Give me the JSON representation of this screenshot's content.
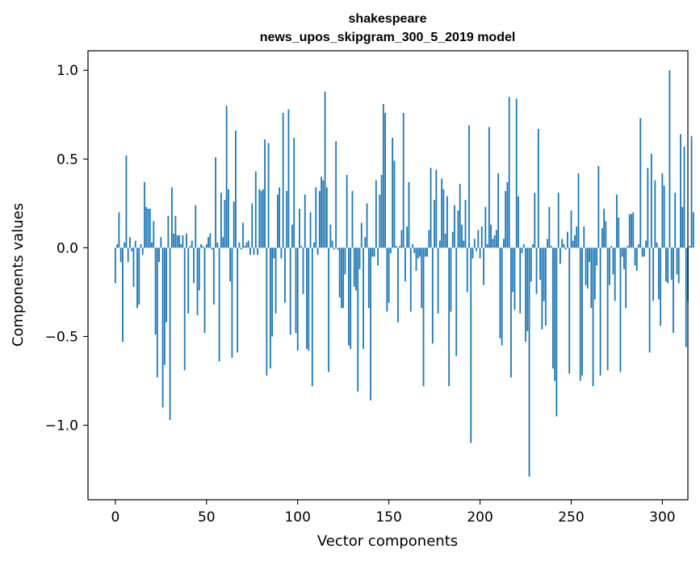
{
  "chart_data": {
    "type": "bar",
    "title": "shakespeare",
    "subtitle": "news_upos_skipgram_300_5_2019 model",
    "xlabel": "Vector components",
    "ylabel": "Components values",
    "xlim": [
      -15,
      314
    ],
    "ylim": [
      -1.42,
      1.11
    ],
    "xticks": [
      0,
      50,
      100,
      150,
      200,
      250,
      300
    ],
    "yticks": [
      -1.0,
      -0.5,
      0.0,
      0.5,
      1.0
    ],
    "ytick_labels": [
      "−1.0",
      "−0.5",
      "0.0",
      "0.5",
      "1.0"
    ],
    "bar_color": "#1f77b4",
    "values": [
      -0.2,
      0.02,
      0.2,
      -0.08,
      -0.53,
      0.03,
      0.52,
      -0.08,
      0.06,
      -0.02,
      -0.22,
      0.04,
      -0.34,
      -0.32,
      0.02,
      -0.04,
      0.37,
      0.23,
      0.22,
      0.22,
      0.03,
      0.15,
      -0.49,
      -0.73,
      -0.08,
      0.06,
      -0.9,
      -0.66,
      -0.42,
      0.18,
      -0.97,
      0.34,
      0.08,
      0.18,
      0.07,
      0.07,
      0.02,
      0.07,
      -0.69,
      0.08,
      -0.37,
      0.01,
      0.04,
      -0.2,
      0.24,
      -0.38,
      -0.24,
      0.02,
      0.01,
      -0.48,
      0.02,
      0.06,
      0.08,
      -0.01,
      -0.32,
      0.51,
      0.03,
      -0.64,
      0.31,
      0.06,
      0.27,
      0.8,
      0.33,
      -0.19,
      -0.62,
      0.26,
      0.66,
      -0.59,
      0.03,
      -0.01,
      0.14,
      0.01,
      0.03,
      0.04,
      -0.04,
      0.25,
      -0.04,
      0.43,
      -0.04,
      0.33,
      0.32,
      0.33,
      0.61,
      -0.72,
      0.59,
      -0.68,
      -0.5,
      -0.06,
      -0.37,
      0.3,
      0.34,
      -0.06,
      0.76,
      -0.31,
      0.32,
      0.78,
      -0.49,
      0.13,
      0.62,
      -0.48,
      -0.58,
      0.22,
      0.01,
      -0.26,
      0.3,
      -0.57,
      -0.58,
      0.2,
      -0.78,
      0.03,
      0.34,
      -0.04,
      0.32,
      0.4,
      0.38,
      0.88,
      0.34,
      -0.7,
      0.13,
      0.04,
      -0.01,
      0.6,
      -0.01,
      -0.28,
      -0.34,
      -0.34,
      -0.15,
      0.41,
      -0.55,
      -0.57,
      0.32,
      -0.22,
      -0.24,
      -0.81,
      -0.12,
      0.14,
      -0.57,
      0.06,
      0.25,
      -0.34,
      -0.86,
      -0.05,
      -0.05,
      0.38,
      -0.1,
      0.3,
      0.41,
      0.81,
      0.76,
      -0.36,
      -0.31,
      -0.03,
      0.62,
      0.49,
      0.01,
      -0.42,
      0.01,
      0.1,
      0.76,
      -0.19,
      0.12,
      0.37,
      -0.36,
      0.02,
      -0.03,
      -0.13,
      -0.06,
      -0.05,
      -0.34,
      -0.78,
      -0.05,
      -0.05,
      0.1,
      0.45,
      -0.54,
      0.27,
      0.44,
      -0.37,
      0.04,
      0.39,
      0.33,
      0.08,
      0.29,
      -0.78,
      -0.36,
      0.09,
      0.24,
      -0.61,
      0.21,
      0.36,
      0.13,
      0.04,
      0.27,
      -0.25,
      0.69,
      -1.1,
      -0.06,
      0.05,
      -0.02,
      0.1,
      -0.06,
      0.12,
      -0.21,
      0.23,
      0.02,
      0.68,
      0.13,
      0.05,
      0.07,
      0.1,
      0.42,
      -0.51,
      -0.55,
      0.05,
      0.32,
      0.37,
      0.85,
      -0.73,
      -0.25,
      -0.35,
      0.84,
      0.29,
      -0.37,
      -0.03,
      0.02,
      -0.53,
      -0.47,
      -1.29,
      -0.19,
      0.02,
      0.31,
      -0.26,
      0.67,
      -0.18,
      -0.46,
      -0.3,
      -0.44,
      0.05,
      0.23,
      0.01,
      -0.68,
      -0.75,
      -0.95,
      0.31,
      -0.09,
      0.05,
      0.02,
      -0.01,
      0.09,
      -0.71,
      0.21,
      0.04,
      0.07,
      0.12,
      0.42,
      -0.75,
      -0.72,
      0.12,
      -0.21,
      -0.23,
      -0.08,
      -0.34,
      -0.78,
      -0.29,
      -0.1,
      0.46,
      -0.72,
      0.11,
      0.22,
      0.15,
      -0.69,
      -0.21,
      0.01,
      -0.15,
      -0.3,
      0.3,
      0.17,
      -0.7,
      -0.05,
      -0.12,
      -0.34,
      0.01,
      0.19,
      0.19,
      0.2,
      -0.1,
      -0.13,
      0.02,
      0.73,
      -0.05,
      -0.05,
      0.04,
      0.45,
      -0.59,
      0.53,
      -0.3,
      0.38,
      0.03,
      -0.29,
      -0.44,
      0.42,
      0.35,
      -0.19,
      -0.2,
      1.0,
      -0.18,
      -0.48,
      0.31,
      -0.15,
      -0.2,
      0.64,
      0.23,
      0.57,
      -0.56,
      -0.3,
      0.01,
      0.63,
      0.2
    ]
  }
}
